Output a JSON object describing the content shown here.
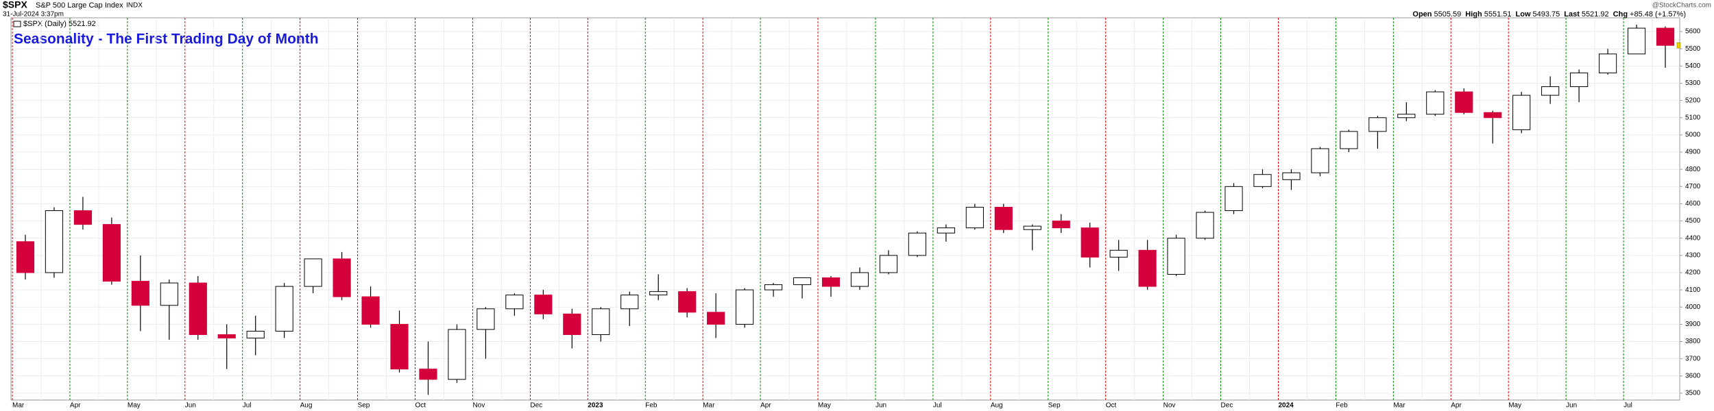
{
  "chart_data": {
    "type": "candlestick",
    "symbol": "$SPX",
    "index_name": "S&P 500 Large Cap Index",
    "exchange": "INDX",
    "timestamp": "31-Jul-2024 3:37pm",
    "legend_label": "$SPX (Daily) 5521.92",
    "credit": "@StockCharts.com",
    "title": "Seasonality - The First Trading Day of Month",
    "quote": [
      {
        "label": "Open",
        "value": "5505.59"
      },
      {
        "label": "High",
        "value": "5551.51"
      },
      {
        "label": "Low",
        "value": "5493.75"
      },
      {
        "label": "Last",
        "value": "5521.92"
      },
      {
        "label": "Chg",
        "value": "+85.48 (+1.57%)"
      }
    ],
    "categories": [
      "Mar",
      null,
      "Apr",
      null,
      "May",
      null,
      "Jun",
      null,
      "Jul",
      null,
      "Aug",
      null,
      "Sep",
      null,
      "Oct",
      null,
      "Nov",
      null,
      "Dec",
      null,
      "2023",
      null,
      "Feb",
      null,
      "Mar",
      null,
      "Apr",
      null,
      "May",
      null,
      "Jun",
      null,
      "Jul",
      null,
      "Aug",
      null,
      "Sep",
      null,
      "Oct",
      null,
      "Nov",
      null,
      "Dec",
      null,
      "2024",
      null,
      "Feb",
      null,
      "Mar",
      null,
      "Apr",
      null,
      "May",
      null,
      "Jun",
      null,
      "Jul",
      null
    ],
    "line_colors": [
      "#e00000",
      null,
      "#008800",
      null,
      "#008800",
      null,
      "#e00000",
      null,
      "#008800",
      null,
      "#e00000",
      null,
      "#e00000",
      null,
      "#e00000",
      null,
      "#008800",
      null,
      "#e00000",
      null,
      "#e00000",
      null,
      "#008800",
      null,
      "#e00000",
      null,
      "#008800",
      null,
      "#e00000",
      null,
      "#008800",
      null,
      "#008800",
      null,
      "#e00000",
      null,
      "#008800",
      null,
      "#e00000",
      null,
      "#008800",
      null,
      "#008800",
      null,
      "#e00000",
      null,
      "#008800",
      null,
      "#008800",
      null,
      "#e00000",
      null,
      "#e00000",
      null,
      "#008800",
      null,
      "#008800",
      null
    ],
    "open": [
      4380,
      4200,
      4560,
      4480,
      4150,
      4010,
      4140,
      3840,
      3820,
      3860,
      4120,
      4280,
      4060,
      3900,
      3640,
      3580,
      3870,
      3990,
      4070,
      3960,
      3840,
      3990,
      4070,
      4090,
      3970,
      3900,
      4100,
      4130,
      4170,
      4120,
      4200,
      4300,
      4430,
      4460,
      4580,
      4450,
      4500,
      4460,
      4290,
      4330,
      4190,
      4400,
      4560,
      4700,
      4740,
      4780,
      4920,
      5020,
      5100,
      5120,
      5250,
      5130,
      5030,
      5230,
      5280,
      5360,
      5470,
      5620
    ],
    "high": [
      4420,
      4580,
      4640,
      4520,
      4300,
      4160,
      4180,
      3900,
      3950,
      4140,
      4280,
      4320,
      4120,
      3980,
      3800,
      3900,
      4000,
      4080,
      4100,
      3990,
      4000,
      4090,
      4190,
      4110,
      4080,
      4110,
      4140,
      4170,
      4180,
      4230,
      4330,
      4440,
      4480,
      4600,
      4600,
      4480,
      4540,
      4490,
      4390,
      4390,
      4420,
      4560,
      4720,
      4800,
      4800,
      4930,
      5030,
      5110,
      5190,
      5260,
      5270,
      5140,
      5250,
      5340,
      5380,
      5500,
      5640,
      5630
    ],
    "low": [
      4160,
      4170,
      4450,
      4130,
      3860,
      3810,
      3810,
      3640,
      3720,
      3820,
      4080,
      4040,
      3880,
      3620,
      3490,
      3560,
      3700,
      3950,
      3930,
      3760,
      3800,
      3890,
      4040,
      3940,
      3820,
      3880,
      4060,
      4050,
      4060,
      4100,
      4190,
      4290,
      4380,
      4450,
      4430,
      4330,
      4430,
      4230,
      4210,
      4100,
      4180,
      4390,
      4540,
      4690,
      4680,
      4760,
      4900,
      4920,
      5080,
      5110,
      5120,
      4950,
      5010,
      5180,
      5190,
      5350,
      5470,
      5390
    ],
    "close": [
      4200,
      4560,
      4480,
      4150,
      4010,
      4140,
      3840,
      3820,
      3860,
      4120,
      4280,
      4060,
      3900,
      3640,
      3580,
      3870,
      3990,
      4070,
      3960,
      3840,
      3990,
      4070,
      4090,
      3970,
      3900,
      4100,
      4130,
      4170,
      4120,
      4200,
      4300,
      4430,
      4460,
      4580,
      4450,
      4470,
      4460,
      4290,
      4330,
      4120,
      4400,
      4550,
      4700,
      4770,
      4780,
      4920,
      5020,
      5100,
      5120,
      5250,
      5130,
      5100,
      5230,
      5280,
      5360,
      5470,
      5620,
      5520
    ],
    "up_color": "#ffffff",
    "down_color": "#d4003c",
    "ylim": [
      3460,
      5680
    ],
    "yticks": [
      3500,
      3600,
      3700,
      3800,
      3900,
      4000,
      4100,
      4200,
      4300,
      4400,
      4500,
      4600,
      4700,
      4800,
      4900,
      5000,
      5100,
      5200,
      5300,
      5400,
      5500,
      5600
    ],
    "grid": true
  }
}
